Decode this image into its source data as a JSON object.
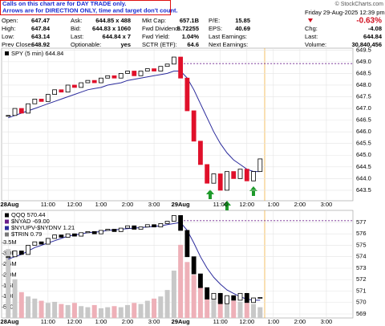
{
  "header": {
    "notice": [
      "Calls on this chart are for DAY TRADE only.",
      "Arrows are for DIRECTION ONLY, time and target don't count."
    ],
    "credit": "© StockCharts.com",
    "date": "Friday 29-Aug-2025 12:39 pm",
    "change_pct": "-0.63%",
    "quote": [
      [
        {
          "label": "Open:",
          "value": "647.47"
        },
        {
          "label": "Ask:",
          "value": "644.85 x 488"
        },
        {
          "label": "Mkt Cap:",
          "value": "657.1B"
        },
        {
          "label": "P/E:",
          "value": "15.85"
        }
      ],
      [
        {
          "label": "High:",
          "value": "647.84"
        },
        {
          "label": "Bid:",
          "value": "644.83 x 1060"
        },
        {
          "label": "Fwd Dividend:",
          "value": "6.72255"
        },
        {
          "label": "EPS:",
          "value": "40.69"
        }
      ],
      [
        {
          "label": "Low:",
          "value": "643.14"
        },
        {
          "label": "Last:",
          "value": "644.84 x 7"
        },
        {
          "label": "Fwd Yield:",
          "value": "1.04%"
        },
        {
          "label": "Last Earnings:",
          "value": null
        }
      ],
      [
        {
          "label": "Prev Close:",
          "value": "648.92"
        },
        {
          "label": "Optionable:",
          "value": "yes"
        },
        {
          "label": "SCTR (ETF):",
          "value": "64.6"
        },
        {
          "label": "Next Earnings:",
          "value": null
        }
      ]
    ],
    "right": [
      {
        "label": "Chg:",
        "value": "-4.08"
      },
      {
        "label": "Last:",
        "value": "644.84"
      },
      {
        "label": "Volume:",
        "value": "30,840,456"
      }
    ]
  },
  "chart_data": [
    {
      "type": "candlestick",
      "title": "SPY (5 min) 644.84",
      "x": [
        0,
        3,
        6,
        9,
        12,
        15,
        18,
        21,
        24,
        27,
        30,
        33,
        36,
        39,
        42,
        45,
        48,
        51,
        54,
        57,
        60,
        63,
        66,
        69,
        72,
        75,
        78,
        81,
        84,
        87,
        90,
        93,
        96,
        99,
        102,
        105,
        108,
        111,
        114
      ],
      "close": [
        646.7,
        647.0,
        646.8,
        647.2,
        647.4,
        647.3,
        647.6,
        647.8,
        647.7,
        648.0,
        647.9,
        648.1,
        648.2,
        648.1,
        648.3,
        648.4,
        648.3,
        648.5,
        648.6,
        648.4,
        648.6,
        648.7,
        648.6,
        648.8,
        648.9,
        649.2,
        648.3,
        646.9,
        645.6,
        644.6,
        643.8,
        644.2,
        643.5,
        644.3,
        644.0,
        644.4,
        643.9,
        644.3,
        644.84
      ],
      "ma": [
        646.6,
        646.7,
        646.8,
        646.9,
        647.0,
        647.1,
        647.2,
        647.3,
        647.4,
        647.5,
        647.6,
        647.7,
        647.8,
        647.85,
        647.9,
        648.0,
        648.05,
        648.1,
        648.2,
        648.25,
        648.3,
        648.35,
        648.4,
        648.45,
        648.5,
        648.6,
        648.6,
        648.3,
        647.8,
        647.2,
        646.6,
        646.0,
        645.5,
        645.1,
        644.8,
        644.6,
        644.4,
        644.3,
        644.3
      ],
      "prev_close": 648.92,
      "xlim": [
        -3,
        156
      ],
      "xticks": [
        {
          "value": 0,
          "label": "28Aug"
        },
        {
          "value": 18,
          "label": "11:00"
        },
        {
          "value": 30,
          "label": "12:00"
        },
        {
          "value": 42,
          "label": "1:00"
        },
        {
          "value": 54,
          "label": "2:00"
        },
        {
          "value": 66,
          "label": "3:00"
        },
        {
          "value": 78,
          "label": "29Aug"
        },
        {
          "value": 96,
          "label": "11:00"
        },
        {
          "value": 108,
          "label": "12:00"
        },
        {
          "value": 120,
          "label": "1:00"
        },
        {
          "value": 132,
          "label": "2:00"
        },
        {
          "value": 144,
          "label": "3:00"
        }
      ],
      "ylim": [
        643.05,
        649.58
      ],
      "yticks": [
        643.5,
        {
          "value": 644,
          "label": "644.0"
        },
        644.5,
        {
          "value": 645,
          "label": "645.0"
        },
        645.5,
        {
          "value": 646,
          "label": "646.0"
        },
        646.5,
        {
          "value": 647,
          "label": "647.0"
        },
        647.5,
        {
          "value": 648,
          "label": "648.0"
        },
        648.5,
        {
          "value": 649,
          "label": "649.0"
        },
        649.5
      ],
      "up_color": "#000000",
      "down_color": "#e0102a",
      "ma_color": "#2b2b9c",
      "ref_color": "#6a1d8a",
      "grid": true
    },
    {
      "type": "candlestick",
      "legend": [
        {
          "text": "QQQ 570.44",
          "color": "#000000"
        },
        {
          "text": "$NYAD -69.00",
          "color": "#6a1d8a"
        },
        {
          "text": "$NYUPV-$NYDNV 1.21",
          "color": "#2b2b9c"
        },
        {
          "text": "$TRIN 0.79",
          "color": "#777777"
        }
      ],
      "x": [
        0,
        3,
        6,
        9,
        12,
        15,
        18,
        21,
        24,
        27,
        30,
        33,
        36,
        39,
        42,
        45,
        48,
        51,
        54,
        57,
        60,
        63,
        66,
        69,
        72,
        75,
        78,
        81,
        84,
        87,
        90,
        93,
        96,
        99,
        102,
        105,
        108,
        111,
        114
      ],
      "close": [
        574.0,
        574.5,
        574.2,
        575.0,
        575.3,
        575.1,
        575.6,
        575.9,
        575.7,
        576.0,
        575.8,
        576.1,
        576.2,
        576.0,
        576.3,
        576.4,
        576.2,
        576.5,
        576.7,
        576.4,
        576.6,
        576.8,
        576.6,
        576.9,
        577.1,
        577.6,
        576.3,
        574.0,
        572.5,
        571.3,
        570.3,
        570.8,
        569.9,
        570.6,
        570.2,
        570.8,
        570.0,
        570.4,
        570.44
      ],
      "ma": [
        573.8,
        574.0,
        574.2,
        574.5,
        574.8,
        575.0,
        575.2,
        575.4,
        575.6,
        575.8,
        575.9,
        576.0,
        576.1,
        576.15,
        576.2,
        576.3,
        576.35,
        576.4,
        576.45,
        576.5,
        576.55,
        576.6,
        576.65,
        576.7,
        576.8,
        576.9,
        577.0,
        576.3,
        575.2,
        574.0,
        573.0,
        572.2,
        571.6,
        571.1,
        570.8,
        570.5,
        570.3,
        570.2,
        570.2
      ],
      "volume": [
        3200000,
        1800000,
        1200000,
        1000000,
        900000,
        800000,
        700000,
        750000,
        650000,
        600000,
        700000,
        550000,
        500000,
        600000,
        450000,
        500000,
        550000,
        500000,
        600000,
        700000,
        650000,
        800000,
        900000,
        1000000,
        1300000,
        2200000,
        3400000,
        2600000,
        2000000,
        1500000,
        1300000,
        1000000,
        1100000,
        900000,
        800000,
        750000,
        700000,
        650000,
        500000
      ],
      "prev_close": 577.15,
      "xlim": [
        -3,
        156
      ],
      "xticks": [
        {
          "value": 0,
          "label": "28Aug"
        },
        {
          "value": 18,
          "label": "11:00"
        },
        {
          "value": 30,
          "label": "12:00"
        },
        {
          "value": 42,
          "label": "1:00"
        },
        {
          "value": 54,
          "label": "2:00"
        },
        {
          "value": 66,
          "label": "3:00"
        },
        {
          "value": 78,
          "label": "29Aug"
        },
        {
          "value": 96,
          "label": "11:00"
        },
        {
          "value": 108,
          "label": "12:00"
        },
        {
          "value": 120,
          "label": "1:00"
        },
        {
          "value": 132,
          "label": "2:00"
        },
        {
          "value": 144,
          "label": "3:00"
        }
      ],
      "ylim": [
        568.65,
        578.05
      ],
      "yticks": [
        569,
        570,
        571,
        572,
        573,
        574,
        575,
        576,
        577
      ],
      "vlim": [
        0,
        5000000
      ],
      "vticks": [
        {
          "value": 500000,
          "label": "500K"
        },
        {
          "value": 1000000,
          "label": "1.0M"
        },
        {
          "value": 1500000,
          "label": "1.5M"
        },
        {
          "value": 2000000,
          "label": "2.0M"
        },
        {
          "value": 2500000,
          "label": "2.5M"
        },
        {
          "value": 3000000,
          "label": "3.0M"
        },
        {
          "value": 3500000,
          "label": "3.5M"
        }
      ],
      "up_color": "#000000",
      "down_color": "#000000",
      "ma_color": "#2b2b9c",
      "ref_color": "#6a1d8a",
      "vol_up_color": "#c8c8c8",
      "vol_down_color": "#eeb0b8",
      "grid": true
    }
  ]
}
